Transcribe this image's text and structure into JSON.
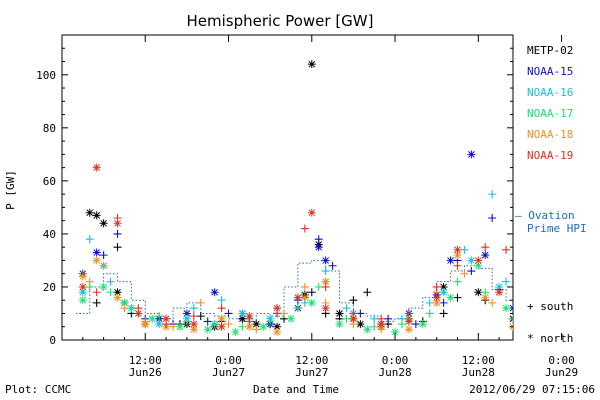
{
  "chart_data": {
    "type": "scatter",
    "title": "Hemispheric Power [GW]",
    "xlabel": "Date and Time",
    "ylabel": "P [GW]",
    "xlim": [
      0,
      65
    ],
    "ylim": [
      0,
      115
    ],
    "y_ticks": [
      0,
      20,
      40,
      60,
      80,
      100
    ],
    "x_ticks": [
      {
        "hour": 12,
        "time": "12:00",
        "date": "Jun26"
      },
      {
        "hour": 24,
        "time": "0:00",
        "date": "Jun27"
      },
      {
        "hour": 36,
        "time": "12:00",
        "date": "Jun27"
      },
      {
        "hour": 48,
        "time": "0:00",
        "date": "Jun28"
      },
      {
        "hour": 60,
        "time": "12:00",
        "date": "Jun28"
      },
      {
        "hour": 72,
        "time": "0:00",
        "date": "Jun29"
      }
    ],
    "footer_left": "Plot: CCMC",
    "footer_right": "2012/06/29 07:15:06",
    "model_label_1": "— Ovation",
    "model_label_2": "Prime HPI",
    "marker_legend": [
      {
        "symbol": "+",
        "label": "south"
      },
      {
        "symbol": "*",
        "label": "north"
      }
    ],
    "series": [
      {
        "name": "METP-02",
        "color": "#000000",
        "south": [
          [
            5,
            14
          ],
          [
            8,
            35
          ],
          [
            10,
            10
          ],
          [
            14,
            8
          ],
          [
            17,
            6
          ],
          [
            20,
            9
          ],
          [
            23,
            7
          ],
          [
            26,
            8
          ],
          [
            30,
            6
          ],
          [
            32,
            8
          ],
          [
            35,
            16
          ],
          [
            36,
            18
          ],
          [
            38,
            10
          ],
          [
            40,
            8
          ],
          [
            42,
            15
          ],
          [
            44,
            18
          ],
          [
            47,
            6
          ],
          [
            52,
            7
          ],
          [
            55,
            10
          ],
          [
            57,
            16
          ],
          [
            61,
            15
          ],
          [
            67,
            6
          ],
          [
            72,
            5
          ],
          [
            76,
            4
          ]
        ],
        "north": [
          [
            4,
            48
          ],
          [
            5,
            47
          ],
          [
            6,
            44
          ],
          [
            8,
            18
          ],
          [
            12,
            6
          ],
          [
            18,
            6
          ],
          [
            22,
            5
          ],
          [
            26,
            8
          ],
          [
            28,
            6
          ],
          [
            31,
            5
          ],
          [
            35,
            17
          ],
          [
            36,
            104
          ],
          [
            37,
            36
          ],
          [
            40,
            10
          ],
          [
            43,
            6
          ],
          [
            46,
            5
          ],
          [
            50,
            8
          ],
          [
            55,
            20
          ],
          [
            60,
            18
          ],
          [
            65,
            8
          ],
          [
            70,
            6
          ],
          [
            74,
            4
          ],
          [
            78,
            6
          ]
        ]
      },
      {
        "name": "NOAA-15",
        "color": "#1010c8",
        "south": [
          [
            6,
            32
          ],
          [
            8,
            40
          ],
          [
            12,
            8
          ],
          [
            16,
            6
          ],
          [
            21,
            7
          ],
          [
            24,
            10
          ],
          [
            27,
            8
          ],
          [
            31,
            10
          ],
          [
            34,
            15
          ],
          [
            37,
            38
          ],
          [
            39,
            28
          ],
          [
            43,
            10
          ],
          [
            47,
            8
          ],
          [
            51,
            6
          ],
          [
            55,
            14
          ],
          [
            57,
            30
          ],
          [
            59,
            26
          ],
          [
            62,
            46
          ],
          [
            63,
            19
          ],
          [
            67,
            8
          ],
          [
            71,
            10
          ],
          [
            76,
            8
          ]
        ],
        "north": [
          [
            3,
            25
          ],
          [
            5,
            33
          ],
          [
            9,
            14
          ],
          [
            14,
            8
          ],
          [
            18,
            10
          ],
          [
            22,
            18
          ],
          [
            26,
            10
          ],
          [
            30,
            6
          ],
          [
            34,
            12
          ],
          [
            37,
            35
          ],
          [
            38,
            30
          ],
          [
            42,
            8
          ],
          [
            46,
            6
          ],
          [
            50,
            10
          ],
          [
            54,
            17
          ],
          [
            56,
            30
          ],
          [
            59,
            70
          ],
          [
            61,
            32
          ],
          [
            65,
            12
          ],
          [
            69,
            6
          ],
          [
            73,
            5
          ],
          [
            77,
            9
          ]
        ]
      },
      {
        "name": "NOAA-16",
        "color": "#18c0d8",
        "south": [
          [
            4,
            38
          ],
          [
            7,
            22
          ],
          [
            11,
            10
          ],
          [
            15,
            8
          ],
          [
            19,
            12
          ],
          [
            23,
            15
          ],
          [
            27,
            8
          ],
          [
            31,
            12
          ],
          [
            35,
            14
          ],
          [
            38,
            26
          ],
          [
            41,
            12
          ],
          [
            45,
            8
          ],
          [
            49,
            8
          ],
          [
            53,
            14
          ],
          [
            58,
            34
          ],
          [
            62,
            55
          ],
          [
            64,
            22
          ],
          [
            68,
            10
          ],
          [
            72,
            8
          ],
          [
            76,
            12
          ]
        ],
        "north": [
          [
            3,
            18
          ],
          [
            6,
            28
          ],
          [
            10,
            12
          ],
          [
            14,
            6
          ],
          [
            18,
            8
          ],
          [
            22,
            6
          ],
          [
            26,
            10
          ],
          [
            30,
            8
          ],
          [
            34,
            16
          ],
          [
            38,
            22
          ],
          [
            42,
            10
          ],
          [
            46,
            6
          ],
          [
            50,
            8
          ],
          [
            55,
            18
          ],
          [
            59,
            30
          ],
          [
            63,
            20
          ],
          [
            67,
            8
          ],
          [
            71,
            6
          ],
          [
            75,
            10
          ]
        ]
      },
      {
        "name": "NOAA-17",
        "color": "#20e070",
        "south": [
          [
            4,
            20
          ],
          [
            7,
            18
          ],
          [
            10,
            12
          ],
          [
            14,
            9
          ],
          [
            18,
            7
          ],
          [
            22,
            6
          ],
          [
            26,
            5
          ],
          [
            30,
            7
          ],
          [
            34,
            12
          ],
          [
            37,
            20
          ],
          [
            41,
            8
          ],
          [
            45,
            5
          ],
          [
            49,
            6
          ],
          [
            53,
            10
          ],
          [
            57,
            22
          ],
          [
            61,
            18
          ],
          [
            65,
            8
          ],
          [
            69,
            5
          ],
          [
            73,
            4
          ],
          [
            77,
            6
          ]
        ],
        "north": [
          [
            3,
            15
          ],
          [
            6,
            20
          ],
          [
            9,
            14
          ],
          [
            13,
            8
          ],
          [
            17,
            5
          ],
          [
            21,
            4
          ],
          [
            25,
            3
          ],
          [
            29,
            5
          ],
          [
            33,
            8
          ],
          [
            36,
            14
          ],
          [
            40,
            6
          ],
          [
            44,
            4
          ],
          [
            48,
            3
          ],
          [
            52,
            6
          ],
          [
            56,
            16
          ],
          [
            60,
            28
          ],
          [
            64,
            12
          ],
          [
            68,
            4
          ],
          [
            72,
            2
          ],
          [
            76,
            3
          ]
        ]
      },
      {
        "name": "NOAA-18",
        "color": "#f09020",
        "south": [
          [
            4,
            22
          ],
          [
            6,
            28
          ],
          [
            9,
            12
          ],
          [
            12,
            7
          ],
          [
            16,
            5
          ],
          [
            20,
            14
          ],
          [
            24,
            6
          ],
          [
            28,
            4
          ],
          [
            32,
            10
          ],
          [
            35,
            20
          ],
          [
            38,
            14
          ],
          [
            42,
            6
          ],
          [
            46,
            4
          ],
          [
            50,
            8
          ],
          [
            54,
            18
          ],
          [
            58,
            25
          ],
          [
            62,
            14
          ],
          [
            66,
            6
          ],
          [
            70,
            3
          ],
          [
            74,
            5
          ]
        ],
        "north": [
          [
            3,
            24
          ],
          [
            5,
            30
          ],
          [
            8,
            16
          ],
          [
            12,
            6
          ],
          [
            15,
            5
          ],
          [
            19,
            4
          ],
          [
            23,
            8
          ],
          [
            27,
            5
          ],
          [
            31,
            3
          ],
          [
            35,
            16
          ],
          [
            38,
            22
          ],
          [
            42,
            8
          ],
          [
            46,
            5
          ],
          [
            50,
            4
          ],
          [
            54,
            14
          ],
          [
            57,
            32
          ],
          [
            61,
            16
          ],
          [
            65,
            5
          ],
          [
            69,
            3
          ],
          [
            73,
            4
          ]
        ]
      },
      {
        "name": "NOAA-19",
        "color": "#e03020",
        "south": [
          [
            5,
            18
          ],
          [
            8,
            46
          ],
          [
            11,
            12
          ],
          [
            15,
            6
          ],
          [
            19,
            9
          ],
          [
            23,
            12
          ],
          [
            27,
            7
          ],
          [
            31,
            10
          ],
          [
            35,
            42
          ],
          [
            38,
            20
          ],
          [
            42,
            10
          ],
          [
            46,
            8
          ],
          [
            50,
            10
          ],
          [
            54,
            20
          ],
          [
            57,
            28
          ],
          [
            61,
            35
          ],
          [
            64,
            34
          ],
          [
            66,
            24
          ],
          [
            70,
            8
          ],
          [
            74,
            6
          ],
          [
            78,
            18
          ]
        ],
        "north": [
          [
            3,
            20
          ],
          [
            5,
            65
          ],
          [
            8,
            44
          ],
          [
            11,
            10
          ],
          [
            15,
            8
          ],
          [
            19,
            6
          ],
          [
            23,
            5
          ],
          [
            27,
            9
          ],
          [
            31,
            12
          ],
          [
            34,
            16
          ],
          [
            36,
            48
          ],
          [
            38,
            12
          ],
          [
            42,
            8
          ],
          [
            46,
            6
          ],
          [
            50,
            7
          ],
          [
            54,
            16
          ],
          [
            57,
            34
          ],
          [
            60,
            30
          ],
          [
            63,
            18
          ],
          [
            66,
            12
          ],
          [
            70,
            6
          ],
          [
            74,
            8
          ],
          [
            78,
            19
          ]
        ]
      }
    ],
    "model_series": {
      "name": "Ovation Prime HPI",
      "color": "#1a6cc0",
      "points": [
        [
          2,
          10
        ],
        [
          4,
          20
        ],
        [
          6,
          25
        ],
        [
          8,
          22
        ],
        [
          10,
          15
        ],
        [
          12,
          10
        ],
        [
          14,
          8
        ],
        [
          16,
          12
        ],
        [
          18,
          14
        ],
        [
          20,
          10
        ],
        [
          22,
          9
        ],
        [
          24,
          8
        ],
        [
          26,
          7
        ],
        [
          28,
          10
        ],
        [
          30,
          9
        ],
        [
          32,
          20
        ],
        [
          34,
          29
        ],
        [
          36,
          30
        ],
        [
          38,
          26
        ],
        [
          40,
          14
        ],
        [
          42,
          10
        ],
        [
          44,
          9
        ],
        [
          46,
          7
        ],
        [
          48,
          8
        ],
        [
          50,
          12
        ],
        [
          52,
          16
        ],
        [
          54,
          22
        ],
        [
          56,
          26
        ],
        [
          58,
          28
        ],
        [
          60,
          27
        ],
        [
          62,
          19
        ],
        [
          64,
          15
        ],
        [
          66,
          12
        ],
        [
          68,
          8
        ],
        [
          70,
          22
        ],
        [
          72,
          12
        ],
        [
          74,
          20
        ],
        [
          76,
          10
        ],
        [
          78,
          8
        ],
        [
          80,
          7
        ]
      ]
    }
  }
}
